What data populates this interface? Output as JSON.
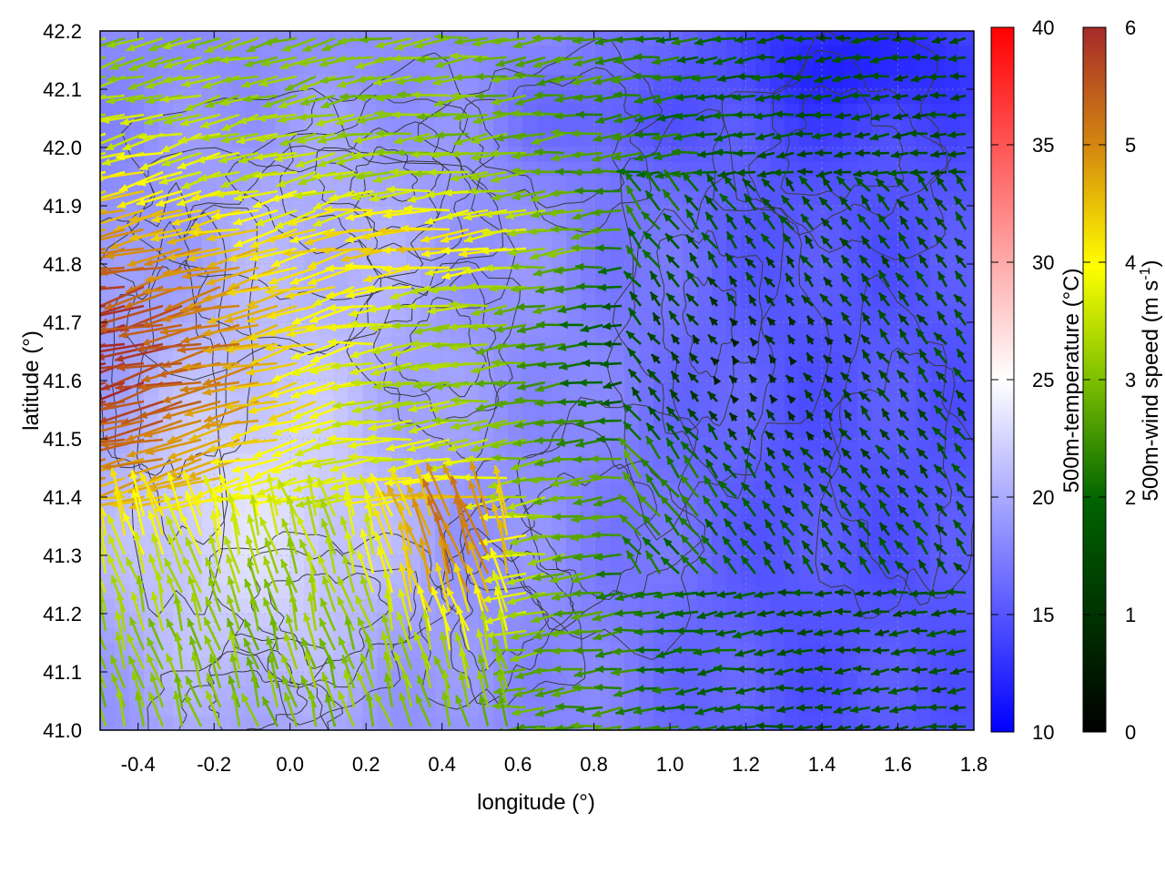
{
  "chart_data": {
    "type": "heatmap",
    "title": "",
    "xlabel": "longitude (°)",
    "ylabel": "latitude (°)",
    "xlim": [
      -0.5,
      1.8
    ],
    "ylim": [
      41.0,
      42.2
    ],
    "x_ticks": [
      "-0.4",
      "-0.2",
      "0.0",
      "0.2",
      "0.4",
      "0.6",
      "0.8",
      "1.0",
      "1.2",
      "1.4",
      "1.6",
      "1.8"
    ],
    "y_ticks": [
      "41.0",
      "41.1",
      "41.2",
      "41.3",
      "41.4",
      "41.5",
      "41.6",
      "41.7",
      "41.8",
      "41.9",
      "42.0",
      "42.1",
      "42.2"
    ],
    "grid": true,
    "overlays": [
      "terrain contours",
      "wind vectors"
    ],
    "temperature_colorbar": {
      "label": "500m-temperature (°C)",
      "range": [
        10,
        40
      ],
      "ticks": [
        "10",
        "15",
        "20",
        "25",
        "30",
        "35",
        "40"
      ],
      "colors": [
        "#0000ff",
        "#ffffff",
        "#ff0000"
      ]
    },
    "wind_colorbar": {
      "label_prefix": "500m-wind speed (m s",
      "label_exponent": "-1",
      "label_suffix": ")",
      "range": [
        0,
        6
      ],
      "ticks": [
        "0",
        "1",
        "2",
        "3",
        "4",
        "5",
        "6"
      ],
      "colors": [
        "#000000",
        "#006400",
        "#7cc000",
        "#ffff00",
        "#d4880f",
        "#a52a2a"
      ]
    },
    "temperature_field_approx_C": {
      "west_lowlands": 23,
      "central": 18,
      "east": 15,
      "northeast_minimum": 12
    },
    "wind_field_approx": {
      "west_max_speed_ms": 6,
      "central_speed_ms": 3,
      "east_speed_ms": 1.5,
      "prevailing_direction": "westward"
    }
  }
}
